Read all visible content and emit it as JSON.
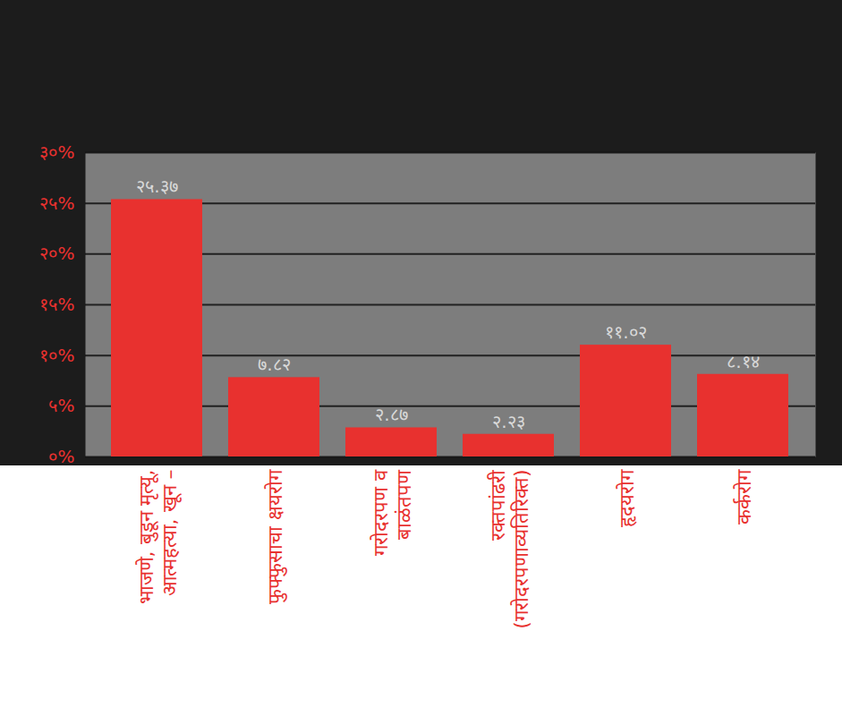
{
  "chart_data": {
    "type": "bar",
    "categories": [
      "भाजणे, बुडून मृत्यू,\nआत्महत्या, खून –",
      "फुफ्फुसाचा क्षयरोग",
      "गरोदरपण व\nबाळंतपण",
      "रक्तपांढरी\n(गरोदरपणाव्यतिरिक्त)",
      "हृदयरोग",
      "कर्करोग"
    ],
    "values": [
      25.37,
      7.82,
      2.87,
      2.23,
      11.02,
      8.14
    ],
    "value_labels": [
      "२५.३७",
      "७.८२",
      "२.८७",
      "२.२३",
      "११.०२",
      "८.१४"
    ],
    "color": "#e8312f",
    "ylim": [
      0,
      30
    ],
    "yticks": [
      {
        "value": 0,
        "label": "०%"
      },
      {
        "value": 5,
        "label": "५%"
      },
      {
        "value": 10,
        "label": "१०%"
      },
      {
        "value": 15,
        "label": "१५%"
      },
      {
        "value": 20,
        "label": "२०%"
      },
      {
        "value": 25,
        "label": "२५%"
      },
      {
        "value": 30,
        "label": "३०%"
      }
    ],
    "grid": true,
    "data_labels": true
  }
}
